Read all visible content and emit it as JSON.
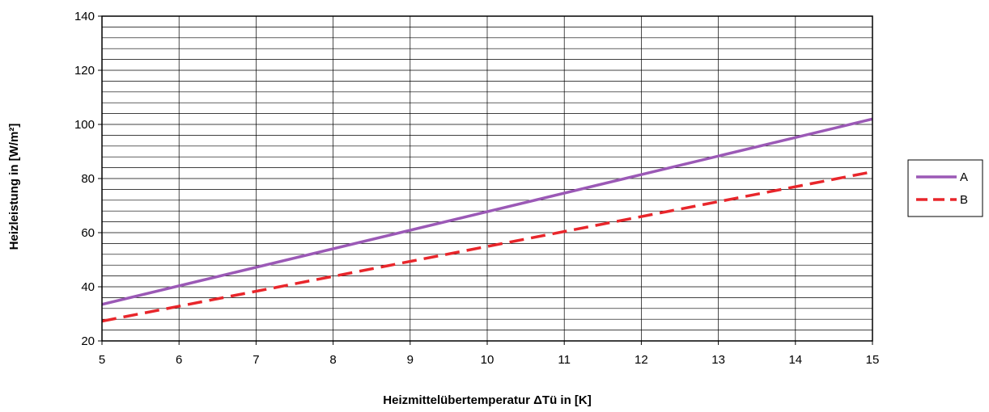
{
  "chart_data": {
    "type": "line",
    "xlabel": "Heizmittelübertemperatur ΔTü in [K]",
    "ylabel": "Heizleistung in [W/m²]",
    "xlim": [
      5,
      15
    ],
    "ylim": [
      20,
      140
    ],
    "x_ticks": [
      "5",
      "6",
      "7",
      "8",
      "9",
      "10",
      "11",
      "12",
      "13",
      "14",
      "15"
    ],
    "y_ticks": [
      "20",
      "40",
      "60",
      "80",
      "100",
      "120",
      "140"
    ],
    "y_minor_step": 4,
    "grid": true,
    "legend_position": "right",
    "series": [
      {
        "name": "A",
        "color": "#9b59b6",
        "style": "solid",
        "x": [
          5,
          15
        ],
        "y": [
          33.5,
          102
        ]
      },
      {
        "name": "B",
        "color": "#e8262b",
        "style": "dashed",
        "x": [
          5,
          15
        ],
        "y": [
          27.3,
          82.5
        ]
      }
    ]
  }
}
